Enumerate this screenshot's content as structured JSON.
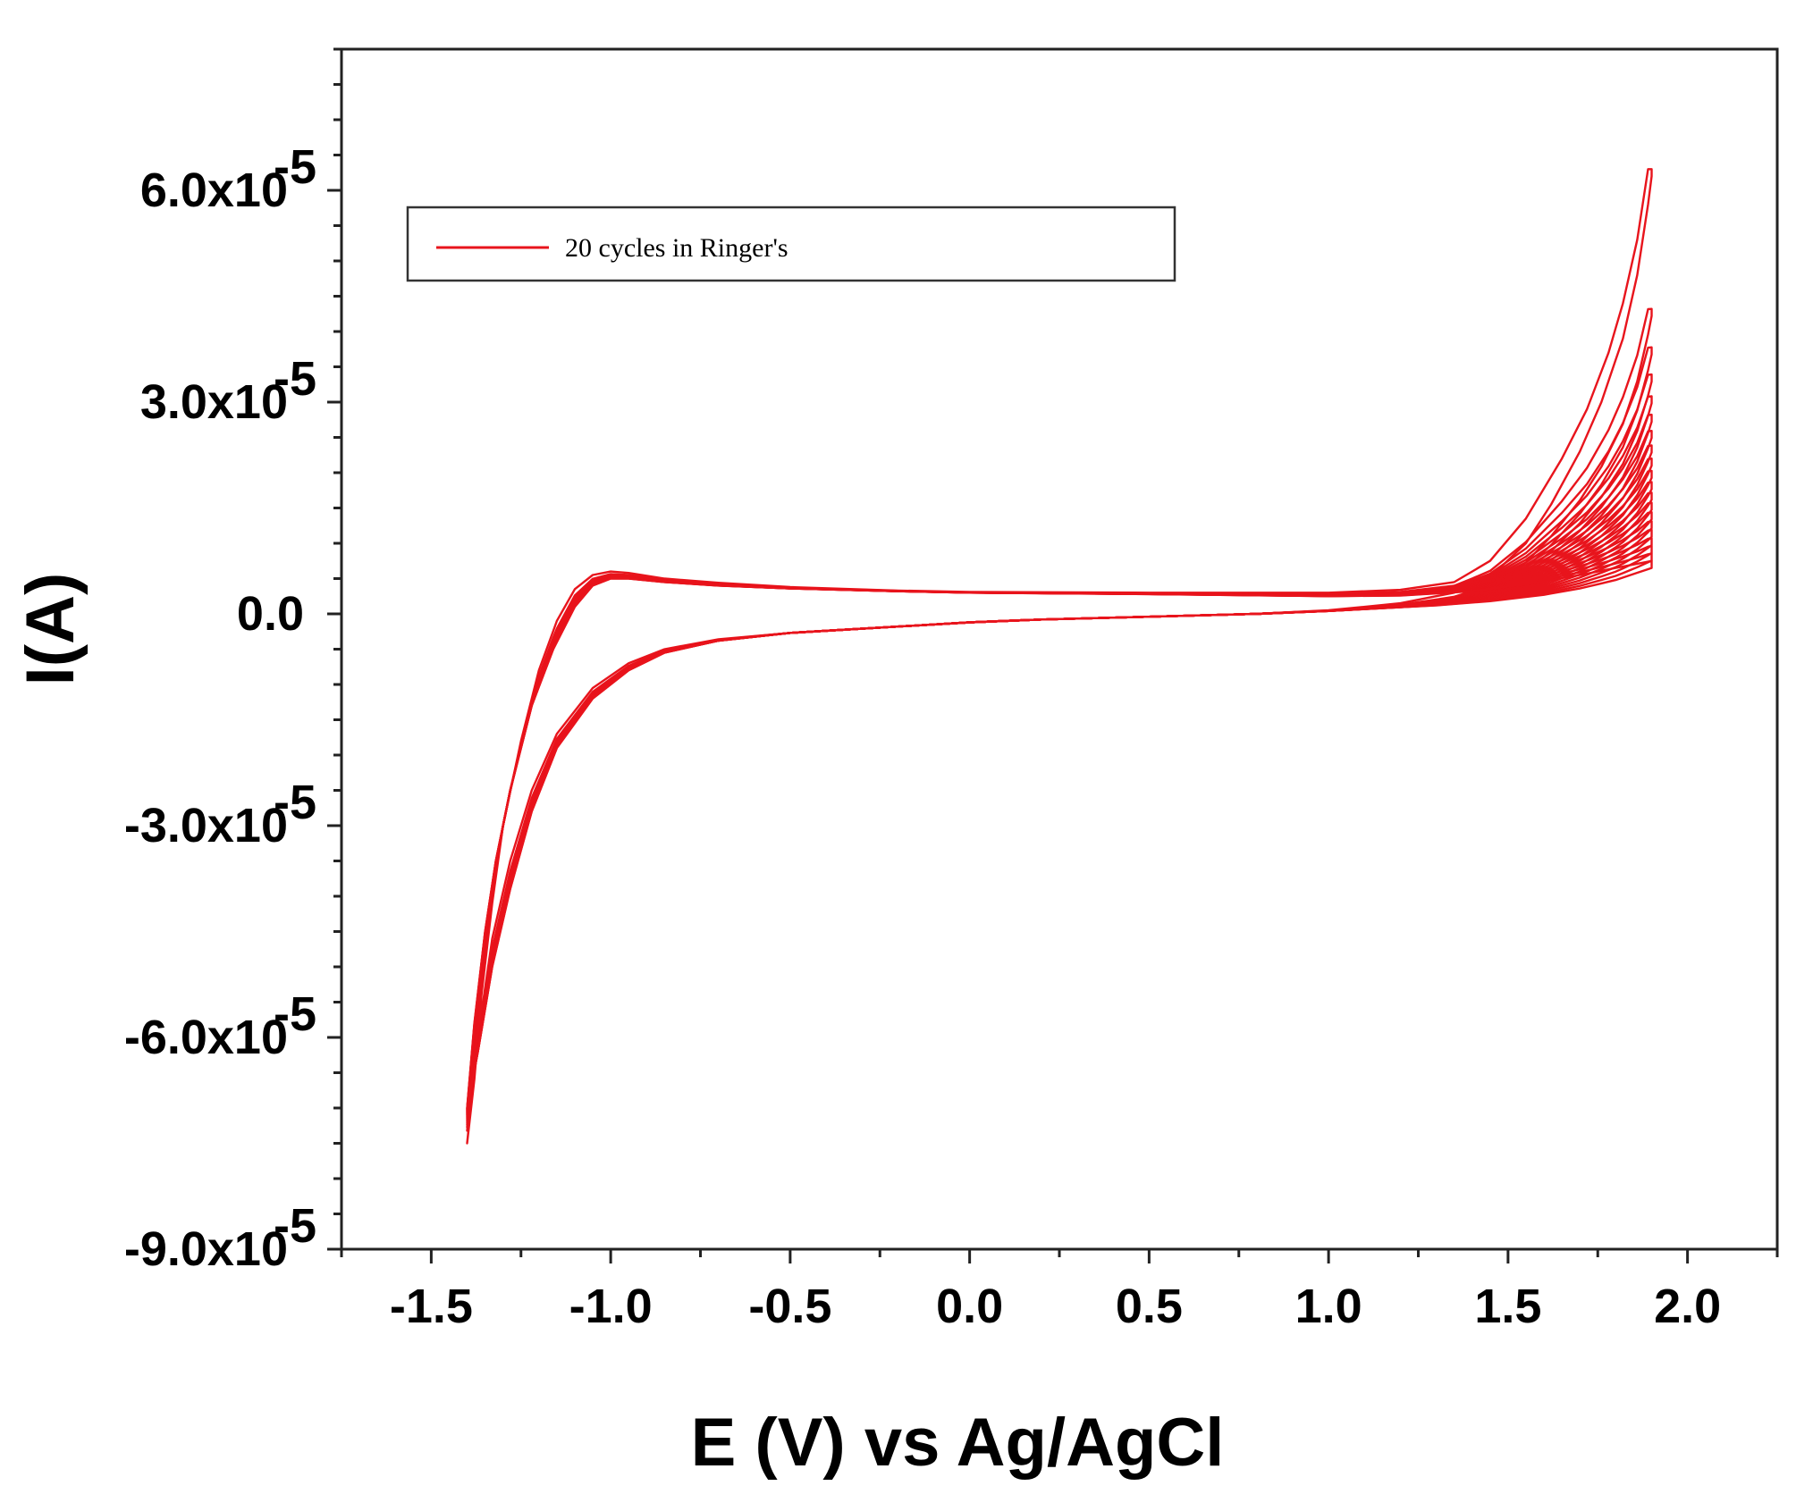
{
  "chart_data": {
    "type": "line",
    "title": "",
    "xlabel": "E (V) vs Ag/AgCl",
    "ylabel": "I(A)",
    "xlim": [
      -1.75,
      2.25
    ],
    "ylim": [
      -9e-05,
      8e-05
    ],
    "grid": false,
    "legend_position": "top-left",
    "x_tick_labels": [
      {
        "value": -1.5,
        "label": "-1.5"
      },
      {
        "value": -1.0,
        "label": "-1.0"
      },
      {
        "value": -0.5,
        "label": "-0.5"
      },
      {
        "value": 0.0,
        "label": "0.0"
      },
      {
        "value": 0.5,
        "label": "0.5"
      },
      {
        "value": 1.0,
        "label": "1.0"
      },
      {
        "value": 1.5,
        "label": "1.5"
      },
      {
        "value": 2.0,
        "label": "2.0"
      }
    ],
    "y_tick_labels": [
      {
        "value": 6e-05,
        "mantissa": "6.0x10",
        "exponent": "-5"
      },
      {
        "value": 3e-05,
        "mantissa": "3.0x10",
        "exponent": "-5"
      },
      {
        "value": 0.0,
        "mantissa": "0.0",
        "exponent": ""
      },
      {
        "value": -3e-05,
        "mantissa": "-3.0x10",
        "exponent": "-5"
      },
      {
        "value": -6e-05,
        "mantissa": "-6.0x10",
        "exponent": "-5"
      },
      {
        "value": -9e-05,
        "mantissa": "-9.0x10",
        "exponent": "-5"
      }
    ],
    "legend": [
      {
        "name": "20 cycles in Ringer's",
        "color": "#e8141c"
      }
    ],
    "series": [
      {
        "name": "20 cycles in Ringer's",
        "color": "#e8141c",
        "cycle_count": 20,
        "first_cycle": {
          "forward": [
            [
              -1.4,
              -7.5e-05
            ],
            [
              -1.38,
              -6.6e-05
            ],
            [
              -1.36,
              -5.4e-05
            ],
            [
              -1.33,
              -4.1e-05
            ],
            [
              -1.3,
              -3e-05
            ],
            [
              -1.25,
              -1.8e-05
            ],
            [
              -1.2,
              -8e-06
            ],
            [
              -1.15,
              -1e-06
            ],
            [
              -1.1,
              3.5e-06
            ],
            [
              -1.05,
              5.5e-06
            ],
            [
              -1.0,
              6e-06
            ],
            [
              -0.95,
              5.8e-06
            ],
            [
              -0.85,
              5e-06
            ],
            [
              -0.7,
              4.4e-06
            ],
            [
              -0.5,
              3.8e-06
            ],
            [
              -0.2,
              3.3e-06
            ],
            [
              0.0,
              3.1e-06
            ],
            [
              0.5,
              3e-06
            ],
            [
              1.0,
              3e-06
            ],
            [
              1.2,
              3.4e-06
            ],
            [
              1.35,
              4.5e-06
            ],
            [
              1.45,
              7.5e-06
            ],
            [
              1.55,
              1.35e-05
            ],
            [
              1.65,
              2.2e-05
            ],
            [
              1.72,
              2.9e-05
            ],
            [
              1.78,
              3.7e-05
            ],
            [
              1.82,
              4.4e-05
            ],
            [
              1.86,
              5.3e-05
            ],
            [
              1.89,
              6.3e-05
            ]
          ],
          "reverse": [
            [
              1.9,
              6.2e-05
            ],
            [
              1.89,
              5.8e-05
            ],
            [
              1.86,
              4.8e-05
            ],
            [
              1.82,
              3.9e-05
            ],
            [
              1.76,
              3e-05
            ],
            [
              1.7,
              2.3e-05
            ],
            [
              1.62,
              1.55e-05
            ],
            [
              1.55,
              1e-05
            ],
            [
              1.45,
              5.2e-06
            ],
            [
              1.35,
              3e-06
            ],
            [
              1.2,
              1.5e-06
            ],
            [
              1.0,
              5e-07
            ],
            [
              0.8,
              0.0
            ],
            [
              0.5,
              -4e-07
            ],
            [
              0.2,
              -8e-07
            ],
            [
              0.0,
              -1.2e-06
            ],
            [
              -0.2,
              -1.8e-06
            ],
            [
              -0.5,
              -2.7e-06
            ],
            [
              -0.7,
              -3.6e-06
            ],
            [
              -0.85,
              -5e-06
            ],
            [
              -0.95,
              -7e-06
            ],
            [
              -1.05,
              -1.05e-05
            ],
            [
              -1.15,
              -1.7e-05
            ],
            [
              -1.22,
              -2.5e-05
            ],
            [
              -1.28,
              -3.5e-05
            ],
            [
              -1.33,
              -4.6e-05
            ],
            [
              -1.37,
              -6e-05
            ],
            [
              -1.4,
              -7.5e-05
            ]
          ]
        },
        "last_cycle": {
          "forward": [
            [
              -1.4,
              -7e-05
            ],
            [
              -1.38,
              -5.8e-05
            ],
            [
              -1.35,
              -4.5e-05
            ],
            [
              -1.32,
              -3.5e-05
            ],
            [
              -1.28,
              -2.5e-05
            ],
            [
              -1.22,
              -1.3e-05
            ],
            [
              -1.16,
              -5e-06
            ],
            [
              -1.1,
              1e-06
            ],
            [
              -1.05,
              4e-06
            ],
            [
              -1.0,
              5e-06
            ],
            [
              -0.95,
              5e-06
            ],
            [
              -0.85,
              4.5e-06
            ],
            [
              -0.7,
              4e-06
            ],
            [
              -0.5,
              3.6e-06
            ],
            [
              -0.2,
              3.2e-06
            ],
            [
              0.0,
              3e-06
            ],
            [
              0.5,
              2.8e-06
            ],
            [
              1.0,
              2.5e-06
            ],
            [
              1.2,
              2.6e-06
            ],
            [
              1.4,
              3.2e-06
            ],
            [
              1.55,
              4.2e-06
            ],
            [
              1.7,
              5.5e-06
            ],
            [
              1.8,
              6.5e-06
            ],
            [
              1.9,
              7.5e-06
            ]
          ],
          "reverse": [
            [
              1.9,
              6.5e-06
            ],
            [
              1.8,
              4.8e-06
            ],
            [
              1.7,
              3.6e-06
            ],
            [
              1.6,
              2.7e-06
            ],
            [
              1.45,
              1.8e-06
            ],
            [
              1.3,
              1.2e-06
            ],
            [
              1.0,
              4e-07
            ],
            [
              0.8,
              0.0
            ],
            [
              0.5,
              -4e-07
            ],
            [
              0.2,
              -8e-07
            ],
            [
              0.0,
              -1.2e-06
            ],
            [
              -0.2,
              -1.8e-06
            ],
            [
              -0.5,
              -2.7e-06
            ],
            [
              -0.7,
              -3.8e-06
            ],
            [
              -0.85,
              -5.5e-06
            ],
            [
              -0.95,
              -8e-06
            ],
            [
              -1.05,
              -1.2e-05
            ],
            [
              -1.15,
              -1.9e-05
            ],
            [
              -1.22,
              -2.8e-05
            ],
            [
              -1.28,
              -3.9e-05
            ],
            [
              -1.33,
              -5e-05
            ],
            [
              -1.37,
              -6.2e-05
            ],
            [
              -1.4,
              -7e-05
            ]
          ]
        },
        "anodic_peak_values_at_1_9V": [
          6.2e-05,
          2.6e-05,
          1.75e-05,
          1.35e-05,
          1.1e-05,
          9.5e-06,
          8.5e-06,
          7.5e-06
        ]
      }
    ]
  }
}
